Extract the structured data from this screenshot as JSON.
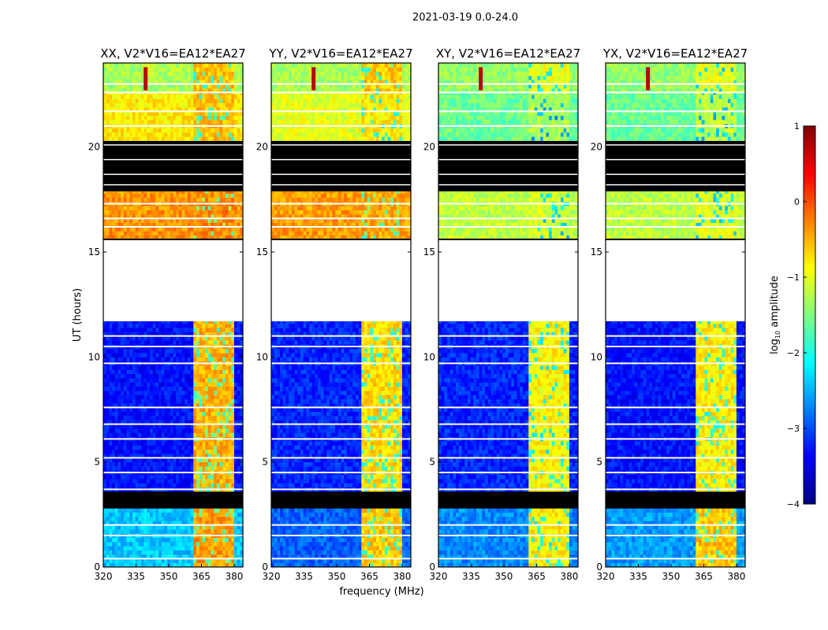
{
  "chart_data": {
    "type": "heatmap",
    "suptitle": "2021-03-19 0.0-24.0",
    "xlabel": "frequency (MHz)",
    "ylabel": "UT (hours)",
    "xlim": [
      320,
      384
    ],
    "ylim": [
      0,
      24
    ],
    "xticks": [
      "320",
      "335",
      "350",
      "365",
      "380"
    ],
    "xtick_values": [
      320,
      335,
      350,
      365,
      380
    ],
    "yticks": [
      "0",
      "5",
      "10",
      "15",
      "20"
    ],
    "ytick_values": [
      0,
      5,
      10,
      15,
      20
    ],
    "colorbar": {
      "label_main": "log",
      "label_sub": "10",
      "label_rest": " amplitude",
      "range": [
        -4,
        1
      ],
      "ticks": [
        "1",
        "0",
        "−1",
        "−2",
        "−3",
        "−4"
      ],
      "tick_values": [
        1,
        0,
        -1,
        -2,
        -3,
        -4
      ],
      "colormap": "jet"
    },
    "rfi_band_mhz": [
      361,
      380
    ],
    "panels": [
      {
        "title": "XX, V2*V16=EA12*EA27",
        "segments": [
          {
            "t": [
              0,
              2.8
            ],
            "low": -2.4,
            "rfi": -0.4
          },
          {
            "t": [
              2.8,
              3.6
            ],
            "low": -3.6,
            "rfi": -0.6,
            "flagged": true
          },
          {
            "t": [
              3.6,
              11.7
            ],
            "low": -3.3,
            "rfi": -0.5
          },
          {
            "t": [
              15.6,
              17.9
            ],
            "low": -0.35,
            "rfi": -0.3
          },
          {
            "t": [
              17.9,
              20.3
            ],
            "flagged": true
          },
          {
            "t": [
              20.3,
              22.6
            ],
            "low": -0.8,
            "rfi": -0.55
          },
          {
            "t": [
              22.6,
              24
            ],
            "low": -1.3,
            "rfi": -0.6
          }
        ]
      },
      {
        "title": "YY, V2*V16=EA12*EA27",
        "segments": [
          {
            "t": [
              0,
              2.8
            ],
            "low": -2.9,
            "rfi": -0.6
          },
          {
            "t": [
              2.8,
              3.6
            ],
            "low": -3.6,
            "rfi": -0.7,
            "flagged": true
          },
          {
            "t": [
              3.6,
              11.7
            ],
            "low": -3.2,
            "rfi": -0.7
          },
          {
            "t": [
              15.6,
              17.9
            ],
            "low": -0.4,
            "rfi": -0.45
          },
          {
            "t": [
              17.9,
              20.3
            ],
            "flagged": true
          },
          {
            "t": [
              20.3,
              22.6
            ],
            "low": -1.0,
            "rfi": -0.8
          },
          {
            "t": [
              22.6,
              24
            ],
            "low": -1.3,
            "rfi": -0.6
          }
        ]
      },
      {
        "title": "XY, V2*V16=EA12*EA27",
        "segments": [
          {
            "t": [
              0,
              2.8
            ],
            "low": -2.7,
            "rfi": -0.8
          },
          {
            "t": [
              2.8,
              3.6
            ],
            "low": -3.6,
            "rfi": -0.9,
            "flagged": true
          },
          {
            "t": [
              3.6,
              11.7
            ],
            "low": -3.2,
            "rfi": -0.85
          },
          {
            "t": [
              15.6,
              17.9
            ],
            "low": -1.2,
            "rfi": -1.1
          },
          {
            "t": [
              17.9,
              20.3
            ],
            "flagged": true
          },
          {
            "t": [
              20.3,
              22.6
            ],
            "low": -1.6,
            "rfi": -1.3
          },
          {
            "t": [
              22.6,
              24
            ],
            "low": -1.4,
            "rfi": -1.0
          }
        ]
      },
      {
        "title": "YX, V2*V16=EA12*EA27",
        "segments": [
          {
            "t": [
              0,
              2.8
            ],
            "low": -2.6,
            "rfi": -0.6
          },
          {
            "t": [
              2.8,
              3.6
            ],
            "low": -3.6,
            "rfi": -0.8,
            "flagged": true
          },
          {
            "t": [
              3.6,
              11.7
            ],
            "low": -3.3,
            "rfi": -0.8
          },
          {
            "t": [
              15.6,
              17.9
            ],
            "low": -1.2,
            "rfi": -1.0
          },
          {
            "t": [
              17.9,
              20.3
            ],
            "flagged": true
          },
          {
            "t": [
              20.3,
              22.6
            ],
            "low": -1.6,
            "rfi": -1.2
          },
          {
            "t": [
              22.6,
              24
            ],
            "low": -1.4,
            "rfi": -1.0
          }
        ]
      }
    ],
    "gap_lines_hours": [
      0.4,
      1.5,
      2.0,
      3.7,
      4.5,
      5.2,
      6.1,
      6.8,
      7.6,
      9.7,
      10.5,
      11.0,
      16.2,
      16.6,
      17.3,
      21.0,
      21.7,
      22.6,
      23.0
    ]
  }
}
